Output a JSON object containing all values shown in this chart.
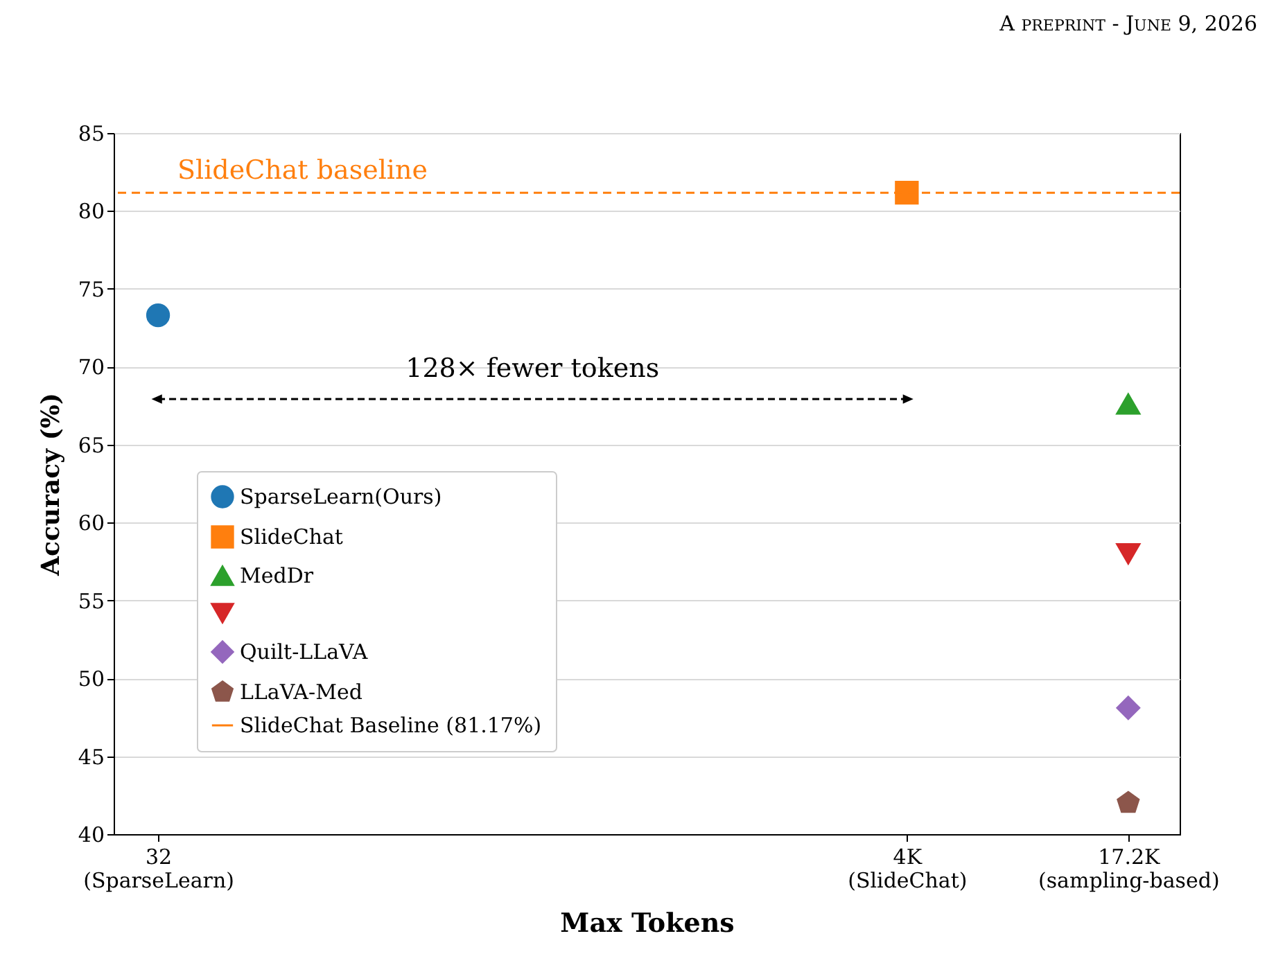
{
  "chart_data": {
    "type": "scatter",
    "xlabel": "Max Tokens",
    "ylabel": "Accuracy (%)",
    "log": "x",
    "grid": "y",
    "legend": "bottom left",
    "xlim": [
      24,
      24000
    ],
    "xticks": [
      {
        "value": 32,
        "label": "32\n(SparseLearn)"
      },
      {
        "value": 4096,
        "label": "4K\n(SlideChat)"
      },
      {
        "value": 17200,
        "label": "17.2K\n(sampling-based)"
      }
    ],
    "ylim": [
      40,
      85
    ],
    "yticks": [
      40,
      45,
      50,
      55,
      60,
      65,
      70,
      75,
      80,
      85
    ],
    "series": [
      {
        "name": "SparseLearn(Ours)",
        "color": "#1f77b4",
        "marker": "circle",
        "x": [
          32
        ],
        "values": [
          73.3
        ]
      },
      {
        "name": "SlideChat",
        "color": "#ff7f0e",
        "marker": "square",
        "x": [
          4096
        ],
        "values": [
          81.17
        ]
      },
      {
        "name": "MedDr",
        "color": "#2ca02c",
        "marker": "triangle",
        "x": [
          17200
        ],
        "values": [
          67.6
        ]
      },
      {
        "name": null,
        "color": "#d62728",
        "marker": "triangle-down",
        "x": [
          17200
        ],
        "values": [
          58.0
        ]
      },
      {
        "name": "Quilt-LLaVA",
        "color": "#9467bd",
        "marker": "diamond",
        "x": [
          17200
        ],
        "values": [
          48.1
        ]
      },
      {
        "name": "LLaVA-Med",
        "color": "#8c564b",
        "x": [
          17200
        ],
        "values": [
          42.0
        ]
      }
    ],
    "ref_lines": [
      {
        "axis": "y",
        "value": 81.17,
        "label": "SlideChat baseline",
        "color": "#ff7f0e",
        "line_style": "dashed"
      }
    ],
    "annotations": [
      "A preprint - June 9, 2026",
      "128× fewer tokens",
      "SlideChat Baseline (81.17%)"
    ]
  }
}
